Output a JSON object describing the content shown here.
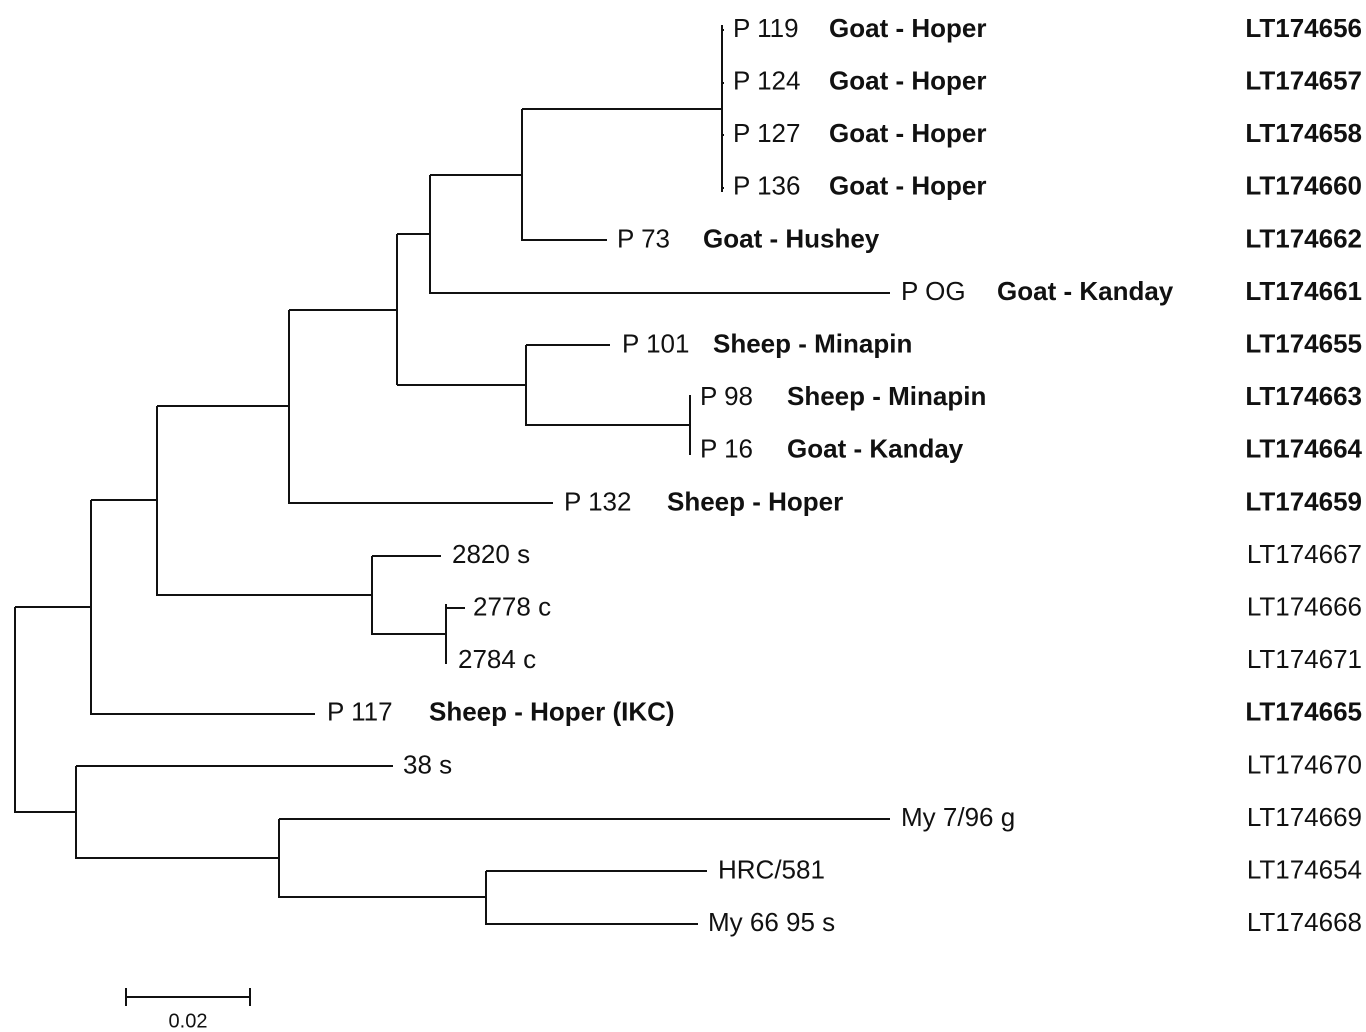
{
  "leaves": [
    {
      "label": "P 119",
      "host": "Goat - Hoper",
      "accession": "LT174656"
    },
    {
      "label": "P 124",
      "host": "Goat - Hoper",
      "accession": "LT174657"
    },
    {
      "label": "P 127",
      "host": "Goat - Hoper",
      "accession": "LT174658"
    },
    {
      "label": "P 136",
      "host": "Goat - Hoper",
      "accession": "LT174660"
    },
    {
      "label": "P 73",
      "host": "Goat - Hushey",
      "accession": "LT174662"
    },
    {
      "label": "P OG",
      "host": "Goat - Kanday",
      "accession": "LT174661"
    },
    {
      "label": "P 101",
      "host": "Sheep - Minapin",
      "accession": "LT174655"
    },
    {
      "label": "P 98",
      "host": "Sheep - Minapin",
      "accession": "LT174663"
    },
    {
      "label": "P 16",
      "host": "Goat - Kanday",
      "accession": "LT174664"
    },
    {
      "label": "P 132",
      "host": "Sheep - Hoper",
      "accession": "LT174659"
    },
    {
      "label": "2820 s",
      "accession": "LT174667"
    },
    {
      "label": "2778 c",
      "accession": "LT174666"
    },
    {
      "label": "2784 c",
      "accession": "LT174671"
    },
    {
      "label": "P 117",
      "host": "Sheep - Hoper (IKC)",
      "accession": "LT174665"
    },
    {
      "label": "38 s",
      "accession": "LT174670"
    },
    {
      "label": "My 7/96 g",
      "accession": "LT174669"
    },
    {
      "label": "HRC/581",
      "accession": "LT174654"
    },
    {
      "label": "My 66 95 s",
      "accession": "LT174668"
    }
  ],
  "scale_bar": {
    "label": "0.02"
  }
}
